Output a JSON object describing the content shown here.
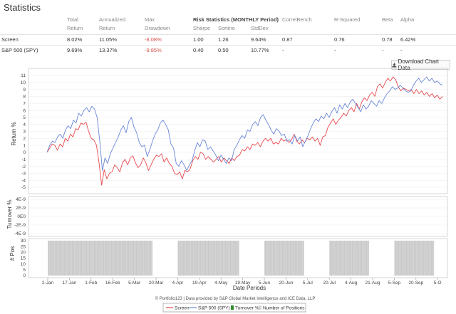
{
  "page": {
    "title": "Statistics"
  },
  "stats": {
    "columns": {
      "total_return": [
        "Total",
        "Return"
      ],
      "annualized_return": [
        "Annualized",
        "Return"
      ],
      "max_drawdown": [
        "Max",
        "Drawdown"
      ],
      "risk_group": "Risk Statistics (MONTHLY Period)",
      "sharpe": "Sharpe",
      "sortino": "Sortino",
      "stddev": "StdDev",
      "correl": "CorrelBench",
      "rsq": "R-Squared",
      "beta": "Beta",
      "alpha": "Alpha"
    },
    "rows": [
      {
        "name": "Screen",
        "total_return": "8.02%",
        "annualized_return": "11.05%",
        "max_drawdown": "-8.08%",
        "sharpe": "1.00",
        "sortino": "1.26",
        "stddev": "9.64%",
        "correl": "0.87",
        "rsq": "0.76",
        "beta": "0.78",
        "alpha": "6.42%"
      },
      {
        "name": "S&P 500 (SPY)",
        "total_return": "9.69%",
        "annualized_return": "13.37%",
        "max_drawdown": "-9.85%",
        "sharpe": "0.40",
        "sortino": "0.50",
        "stddev": "10.77%",
        "correl": "-",
        "rsq": "-",
        "beta": "-",
        "alpha": "-"
      }
    ]
  },
  "download_button": {
    "label": "Download Chart Data",
    "icon": "download-icon"
  },
  "footer": {
    "credit": "© Portfolio123 | Data provided by S&P Global Market Intelligence and ICE Data, LLP"
  },
  "colors": {
    "screen": "#e8484d",
    "spy": "#6a86d8",
    "turnover": "#2e8b2e",
    "positions": "#d3d3d3"
  },
  "chart_data": [
    {
      "type": "line",
      "ylabel": "Return %",
      "xlabel": "Date Periods",
      "ylim": [
        -5,
        11
      ],
      "yticks": [
        11,
        10,
        9,
        8,
        7,
        6,
        5,
        4,
        3,
        2,
        1,
        0,
        -1,
        -2,
        -3,
        -4,
        -5
      ],
      "xticks": [
        "2-Jan",
        "17-Jan",
        "1-Feb",
        "16-Feb",
        "5-Mar",
        "20-Mar",
        "4-Apr",
        "19-Apr",
        "4-May",
        "19-May",
        "5-Jun",
        "20-Jun",
        "5-Jul",
        "20-Jul",
        "4-Aug",
        "21-Aug",
        "5-Sep",
        "20-Sep",
        "5-O"
      ],
      "series": [
        {
          "name": "Screen",
          "color": "#e8484d",
          "values": [
            0,
            0.6,
            1.2,
            1.0,
            0.3,
            1.2,
            0.8,
            2.0,
            1.6,
            2.6,
            2.2,
            3.4,
            3.2,
            4.2,
            4.0,
            4.3,
            3.0,
            2.0,
            1.8,
            1.0,
            -1.5,
            -4.7,
            -2.5,
            -3.8,
            -3.0,
            -2.8,
            -1.8,
            -2.2,
            -2.8,
            -1.5,
            -1.0,
            -1.8,
            -0.8,
            -0.5,
            -1.5,
            -2.2,
            -1.8,
            -0.8,
            -1.5,
            -2.6,
            -1.8,
            -1.0,
            -0.4,
            -0.6,
            -0.2,
            -1.4,
            -0.8,
            -1.6,
            -2.0,
            -3.0,
            -3.2,
            -2.8,
            -3.8,
            -2.6,
            -2.8,
            -2.4,
            -1.2,
            -0.6,
            -1.0,
            0.0,
            -0.2,
            -1.0,
            -0.6,
            -1.0,
            -1.4,
            -1.0,
            -0.6,
            -1.4,
            -0.8,
            -1.2,
            -1.6,
            -0.8,
            -1.2,
            -0.6,
            -0.4,
            0.4,
            0.2,
            0.8,
            0.4,
            1.2,
            1.0,
            1.4,
            0.8,
            1.6,
            2.0,
            1.6,
            2.0,
            1.2,
            1.4,
            1.2,
            2.0,
            1.6,
            1.8,
            1.4,
            1.8,
            2.6,
            1.6,
            1.2,
            1.8,
            1.4,
            2.0,
            1.8,
            2.2,
            1.6,
            2.0,
            1.0,
            2.2,
            2.4,
            3.6,
            4.2,
            4.8,
            4.0,
            4.6,
            5.0,
            5.6,
            5.2,
            6.0,
            6.4,
            5.8,
            7.0,
            6.2,
            7.2,
            7.8,
            7.4,
            8.2,
            8.6,
            8.0,
            9.4,
            9.8,
            9.2,
            10.0,
            10.6,
            10.2,
            10.8,
            10.4,
            9.4,
            8.8,
            9.2,
            9.0,
            8.8,
            9.0,
            8.4,
            9.0,
            8.4,
            8.8,
            8.2,
            8.6,
            8.0,
            8.4,
            7.8,
            8.2,
            7.6,
            8.0
          ]
        },
        {
          "name": "S&P 500 (SPY)",
          "color": "#6a86d8",
          "values": [
            0,
            1.0,
            1.6,
            1.4,
            2.2,
            2.6,
            2.0,
            3.2,
            3.8,
            3.4,
            4.6,
            4.2,
            5.6,
            5.2,
            6.0,
            6.4,
            5.8,
            6.6,
            6.2,
            5.0,
            1.6,
            -2.6,
            -0.8,
            -1.6,
            -0.2,
            0.6,
            1.4,
            2.2,
            3.2,
            3.8,
            2.8,
            4.4,
            5.0,
            3.6,
            2.8,
            1.4,
            0.8,
            1.0,
            -0.6,
            0.4,
            1.6,
            2.6,
            3.2,
            4.2,
            4.6,
            4.0,
            3.2,
            1.2,
            0.6,
            -1.6,
            -2.0,
            -1.2,
            -1.8,
            -2.6,
            -1.8,
            -1.2,
            0.2,
            1.4,
            0.8,
            1.8,
            1.6,
            0.4,
            0.8,
            0.2,
            -0.4,
            -1.2,
            -0.4,
            -1.0,
            -1.6,
            -0.8,
            -1.2,
            0.4,
            1.0,
            1.8,
            2.4,
            2.0,
            3.2,
            3.0,
            4.0,
            4.4,
            3.8,
            5.0,
            5.4,
            4.6,
            4.0,
            3.2,
            2.6,
            3.4,
            3.0,
            2.4,
            2.6,
            1.6,
            1.8,
            1.2,
            2.4,
            1.6,
            2.2,
            0.8,
            1.6,
            2.4,
            3.4,
            4.2,
            4.8,
            4.4,
            5.2,
            4.8,
            5.6,
            5.0,
            5.8,
            6.4,
            5.6,
            6.8,
            6.2,
            7.0,
            6.4,
            7.2,
            7.6,
            7.0,
            6.4,
            5.8,
            6.8,
            6.2,
            6.6,
            7.4,
            7.0,
            6.6,
            7.4,
            7.0,
            7.8,
            8.4,
            8.8,
            9.4,
            9.0,
            9.2,
            9.6,
            9.2,
            8.8,
            8.6,
            8.8,
            9.6,
            10.2,
            10.6,
            10.0,
            10.4,
            10.8,
            10.2,
            10.6,
            10.0,
            10.2,
            9.8,
            9.6
          ]
        }
      ]
    },
    {
      "type": "bar",
      "ylabel": "Turnover %",
      "yticks": [
        "4E-9",
        "2E-9",
        "0E0",
        "-2E-9",
        "-4E-9"
      ],
      "series": [
        {
          "name": "Turnover %",
          "color": "#2e8b2e",
          "values": []
        }
      ]
    },
    {
      "type": "bar",
      "ylabel": "# Pos",
      "yticks": [
        30,
        25,
        20,
        15,
        10,
        5,
        0
      ],
      "ylim": [
        0,
        30
      ],
      "series": [
        {
          "name": "Number of Positions",
          "color": "#d3d3d3",
          "value": 30,
          "segments": [
            [
              "2-Jan",
              "20-Mar"
            ],
            [
              "4-Apr",
              "19-May"
            ],
            [
              "5-Jun",
              "5-Jul"
            ],
            [
              "20-Jul",
              "21-Aug"
            ],
            [
              "5-Sep",
              "5-O"
            ]
          ]
        }
      ]
    }
  ],
  "legend": [
    "Screen",
    "S&P 500 (SPY)",
    "Turnover %",
    "Number of Positions"
  ]
}
